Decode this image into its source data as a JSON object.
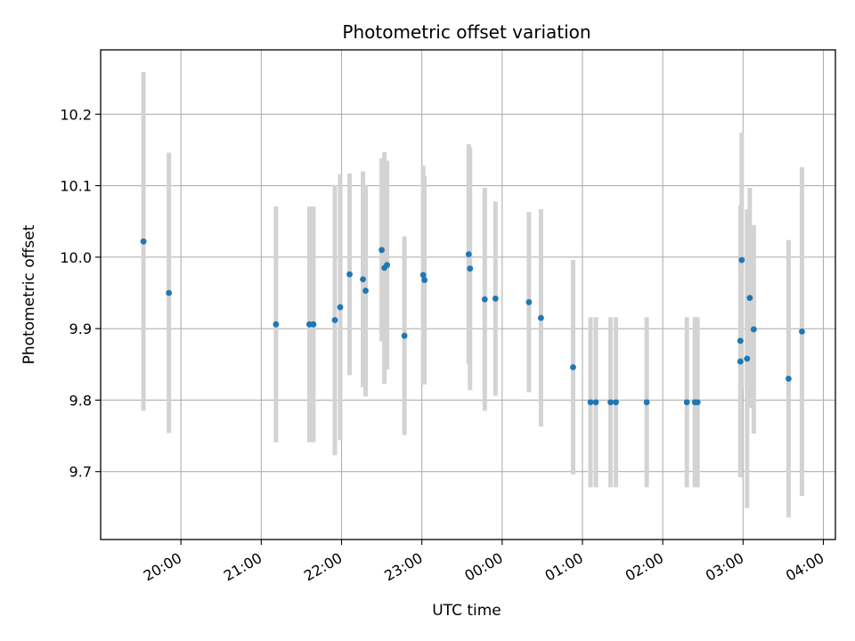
{
  "chart_data": {
    "type": "scatter",
    "title": "Photometric offset variation",
    "xlabel": "UTC time",
    "ylabel": "Photometric offset",
    "grid": true,
    "x_ticks": [
      "20:00",
      "21:00",
      "22:00",
      "23:00",
      "00:00",
      "01:00",
      "02:00",
      "03:00",
      "04:00"
    ],
    "y_ticks": [
      "9.7",
      "9.8",
      "9.9",
      "10.0",
      "10.1",
      "10.2"
    ],
    "xlim": [
      "19:00",
      "04:09"
    ],
    "ylim": [
      9.605,
      10.29
    ],
    "colors": {
      "point": "#1f77b4",
      "errorbar": "#d3d3d3",
      "grid": "#b0b0b0"
    },
    "points": [
      {
        "x": "19:32",
        "y": 10.022,
        "err": 0.237
      },
      {
        "x": "19:51",
        "y": 9.95,
        "err": 0.196
      },
      {
        "x": "21:11",
        "y": 9.906,
        "err": 0.165
      },
      {
        "x": "21:36",
        "y": 9.906,
        "err": 0.165
      },
      {
        "x": "21:39",
        "y": 9.906,
        "err": 0.165
      },
      {
        "x": "21:55",
        "y": 9.912,
        "err": 0.189
      },
      {
        "x": "21:59",
        "y": 9.93,
        "err": 0.186
      },
      {
        "x": "22:06",
        "y": 9.976,
        "err": 0.141
      },
      {
        "x": "22:16",
        "y": 9.969,
        "err": 0.151
      },
      {
        "x": "22:18",
        "y": 9.953,
        "err": 0.148
      },
      {
        "x": "22:30",
        "y": 10.01,
        "err": 0.128
      },
      {
        "x": "22:32",
        "y": 9.985,
        "err": 0.162
      },
      {
        "x": "22:34",
        "y": 9.989,
        "err": 0.146
      },
      {
        "x": "22:47",
        "y": 9.89,
        "err": 0.139
      },
      {
        "x": "23:01",
        "y": 9.975,
        "err": 0.153
      },
      {
        "x": "23:02",
        "y": 9.968,
        "err": 0.146
      },
      {
        "x": "23:35",
        "y": 10.004,
        "err": 0.154
      },
      {
        "x": "23:36",
        "y": 9.984,
        "err": 0.17
      },
      {
        "x": "23:47",
        "y": 9.941,
        "err": 0.156
      },
      {
        "x": "23:55",
        "y": 9.942,
        "err": 0.136
      },
      {
        "x": "00:20",
        "y": 9.937,
        "err": 0.126
      },
      {
        "x": "00:29",
        "y": 9.915,
        "err": 0.152
      },
      {
        "x": "00:53",
        "y": 9.846,
        "err": 0.15
      },
      {
        "x": "01:06",
        "y": 9.797,
        "err": 0.119
      },
      {
        "x": "01:10",
        "y": 9.797,
        "err": 0.119
      },
      {
        "x": "01:21",
        "y": 9.797,
        "err": 0.119
      },
      {
        "x": "01:25",
        "y": 9.797,
        "err": 0.119
      },
      {
        "x": "01:48",
        "y": 9.797,
        "err": 0.119
      },
      {
        "x": "02:18",
        "y": 9.797,
        "err": 0.119
      },
      {
        "x": "02:24",
        "y": 9.797,
        "err": 0.119
      },
      {
        "x": "02:26",
        "y": 9.797,
        "err": 0.119
      },
      {
        "x": "02:58",
        "y": 9.854,
        "err": 0.162
      },
      {
        "x": "02:58",
        "y": 9.883,
        "err": 0.189
      },
      {
        "x": "02:59",
        "y": 9.996,
        "err": 0.178
      },
      {
        "x": "03:03",
        "y": 9.858,
        "err": 0.209
      },
      {
        "x": "03:05",
        "y": 9.943,
        "err": 0.154
      },
      {
        "x": "03:08",
        "y": 9.899,
        "err": 0.146
      },
      {
        "x": "03:34",
        "y": 9.83,
        "err": 0.194
      },
      {
        "x": "03:44",
        "y": 9.896,
        "err": 0.23
      }
    ]
  }
}
